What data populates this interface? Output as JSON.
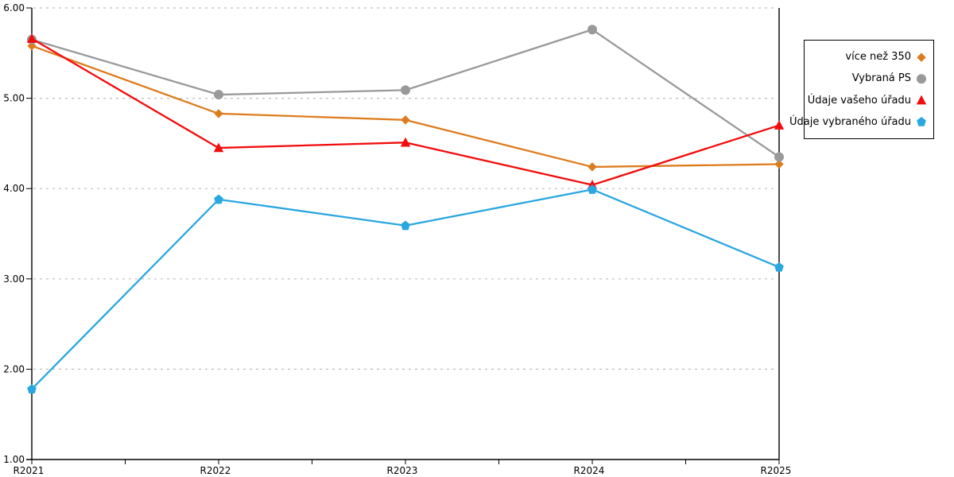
{
  "chart_data": {
    "type": "line",
    "title": "",
    "xlabel": "",
    "ylabel": "",
    "categories": [
      "R2021",
      "R2022",
      "R2023",
      "R2024",
      "R2025"
    ],
    "series": [
      {
        "name": "více než 350",
        "color": "#DD7C1E",
        "marker": "diamond",
        "values": [
          5.58,
          4.83,
          4.76,
          4.24,
          4.27
        ]
      },
      {
        "name": "Vybraná PS",
        "color": "#999999",
        "marker": "circle",
        "values": [
          5.65,
          5.04,
          5.09,
          5.76,
          4.35
        ]
      },
      {
        "name": "Údaje vašeho úřadu",
        "color": "#F20C0C",
        "marker": "triangle",
        "values": [
          5.66,
          4.45,
          4.51,
          4.04,
          4.7
        ]
      },
      {
        "name": "Údaje vybraného úřadu",
        "color": "#2AA7E0",
        "marker": "pentagon",
        "values": [
          1.78,
          3.88,
          3.59,
          3.99,
          3.13
        ]
      }
    ],
    "ylim": [
      1,
      6
    ],
    "y_tick_labels": [
      "6.00",
      "5.00",
      "4.00",
      "3.00",
      "2.00",
      "1.00"
    ],
    "grid": "horizontal-dashed",
    "grid_color": "#bdbdbd",
    "axis_color": "#000000",
    "legend_position": "right-outside",
    "legend_border_color": "#000000"
  }
}
